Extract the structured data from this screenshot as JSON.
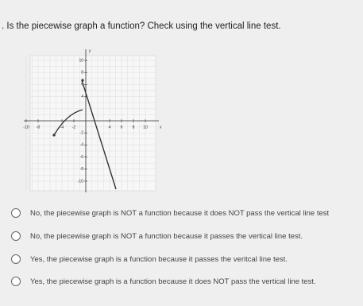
{
  "question": ". Is the piecewise graph a function? Check using the vertical line test.",
  "graph": {
    "x_label": "x",
    "y_label": "y",
    "xticks": [
      -10,
      -8,
      -4,
      -2,
      4,
      6,
      8,
      10
    ],
    "yticks": [
      10,
      8,
      6,
      4,
      -2,
      -4,
      -6,
      -8,
      -10
    ]
  },
  "options": [
    "No, the piecewise graph is NOT a function because it does NOT pass the vertical line test",
    "No, the piecewise graph is NOT a function because it passes the vertical line test.",
    "Yes, the piecewise graph is a function because it passes the veritcal line test.",
    "Yes, the piecewise graph is a function because it does NOT pass the vertical line test."
  ]
}
